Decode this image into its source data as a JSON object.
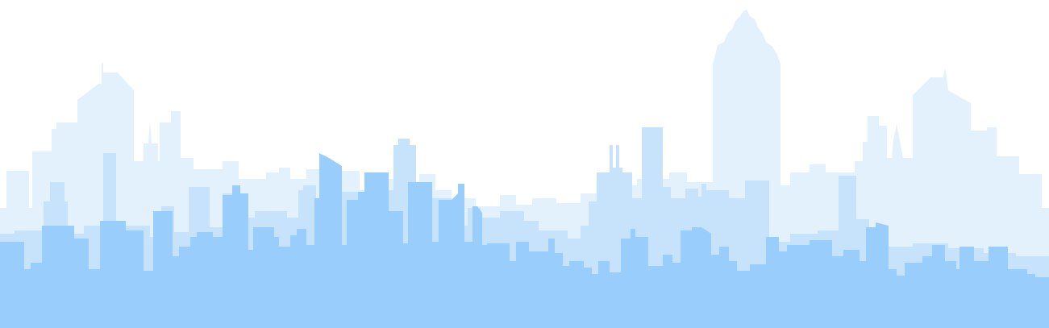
{
  "scene": {
    "subject": "city-skyline-silhouette",
    "palette": {
      "background": "#ffffff",
      "far": "#e3f1fd",
      "mid": "#c7e3fc",
      "near": "#98cdfc"
    }
  }
}
